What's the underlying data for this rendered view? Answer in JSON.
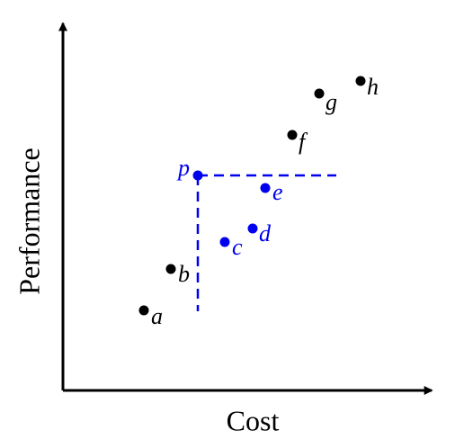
{
  "axes": {
    "x_label": "Cost",
    "y_label": "Performance"
  },
  "colors": {
    "dominated": "#000000",
    "highlight": "#0000ee"
  },
  "points": [
    {
      "id": "a",
      "label": "a",
      "highlight": false
    },
    {
      "id": "b",
      "label": "b",
      "highlight": false
    },
    {
      "id": "c",
      "label": "c",
      "highlight": true
    },
    {
      "id": "d",
      "label": "d",
      "highlight": true
    },
    {
      "id": "e",
      "label": "e",
      "highlight": true
    },
    {
      "id": "f",
      "label": "f",
      "highlight": false
    },
    {
      "id": "g",
      "label": "g",
      "highlight": false
    },
    {
      "id": "h",
      "label": "h",
      "highlight": false
    },
    {
      "id": "p",
      "label": "p",
      "highlight": true
    }
  ]
}
